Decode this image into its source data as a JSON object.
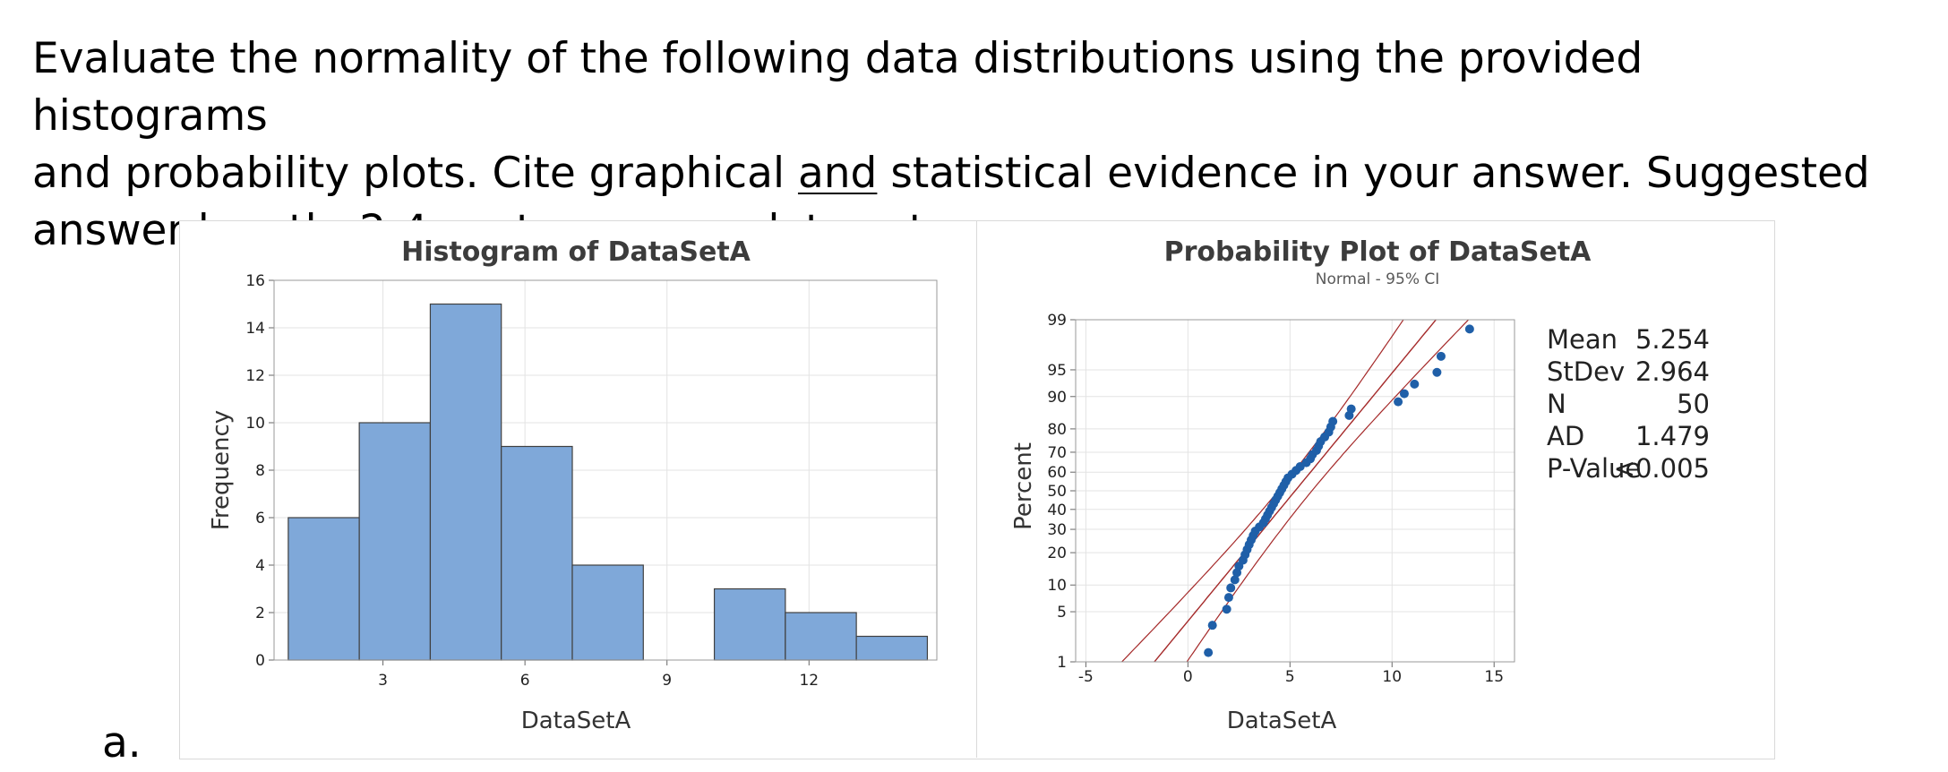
{
  "prompt": {
    "line1": "Evaluate the normality of the following data distributions using the provided histograms",
    "line2_a": "and probability plots.  Cite graphical ",
    "line2_u": "and",
    "line2_b": " statistical evidence in your answer. Suggested",
    "line3": "answer length: 2-4 sentences per data set."
  },
  "item_label": "a.",
  "chart_data": [
    {
      "type": "bar",
      "title": "Histogram of DataSetA",
      "xlabel": "DataSetA",
      "ylabel": "Frequency",
      "bin_edges": [
        1,
        2.5,
        4,
        5.5,
        7,
        8.5,
        10,
        11.5,
        13,
        14.5
      ],
      "values": [
        6,
        10,
        15,
        9,
        4,
        0,
        3,
        2,
        1
      ],
      "xticks": [
        3,
        6,
        9,
        12
      ],
      "yticks": [
        0,
        2,
        4,
        6,
        8,
        10,
        12,
        14,
        16
      ],
      "ylim": [
        0,
        16
      ],
      "xlim": [
        0.7,
        14.7
      ],
      "grid": true,
      "bar_color": "#7fa8d9",
      "bar_edge": "#404040"
    },
    {
      "type": "scatter",
      "title": "Probability Plot of DataSetA",
      "subtitle": "Normal - 95% CI",
      "xlabel": "DataSetA",
      "ylabel": "Percent",
      "y_scale": "normal-probability",
      "xticks": [
        -5,
        0,
        5,
        10,
        15
      ],
      "yticks": [
        1,
        5,
        10,
        20,
        30,
        40,
        50,
        60,
        70,
        80,
        90,
        95,
        99
      ],
      "xlim": [
        -5.5,
        16
      ],
      "ylim": [
        1,
        99
      ],
      "grid": true,
      "point_color": "#1f5fa8",
      "line_color": "#a52a2a",
      "fit": {
        "mean": 5.254,
        "stdev": 2.964
      },
      "points": {
        "x": [
          1.0,
          1.2,
          1.9,
          2.0,
          2.1,
          2.3,
          2.4,
          2.5,
          2.7,
          2.8,
          2.9,
          3.0,
          3.1,
          3.2,
          3.3,
          3.5,
          3.7,
          3.8,
          3.9,
          4.0,
          4.1,
          4.2,
          4.3,
          4.4,
          4.5,
          4.6,
          4.7,
          4.8,
          4.9,
          5.1,
          5.3,
          5.5,
          5.8,
          6.0,
          6.1,
          6.3,
          6.4,
          6.5,
          6.7,
          6.9,
          7.0,
          7.1,
          7.9,
          8.0,
          10.3,
          10.6,
          11.1,
          12.2,
          12.4,
          13.8
        ],
        "percent": [
          1.39,
          3.37,
          5.36,
          7.34,
          9.33,
          11.31,
          13.29,
          15.28,
          17.26,
          19.25,
          21.23,
          23.21,
          25.2,
          27.18,
          29.17,
          31.15,
          33.13,
          35.12,
          37.1,
          39.09,
          41.07,
          43.06,
          45.04,
          47.02,
          49.01,
          50.99,
          52.98,
          54.96,
          56.94,
          58.93,
          60.91,
          62.9,
          64.88,
          66.87,
          68.85,
          70.83,
          72.82,
          74.8,
          76.79,
          78.77,
          80.75,
          82.74,
          84.72,
          86.71,
          88.69,
          90.67,
          92.66,
          94.64,
          96.63,
          98.61
        ]
      },
      "stats": [
        {
          "label": "Mean",
          "value": "5.254"
        },
        {
          "label": "StDev",
          "value": "2.964"
        },
        {
          "label": "N",
          "value": "50"
        },
        {
          "label": "AD",
          "value": "1.479"
        },
        {
          "label": "P-Value",
          "value": "<0.005"
        }
      ]
    }
  ]
}
